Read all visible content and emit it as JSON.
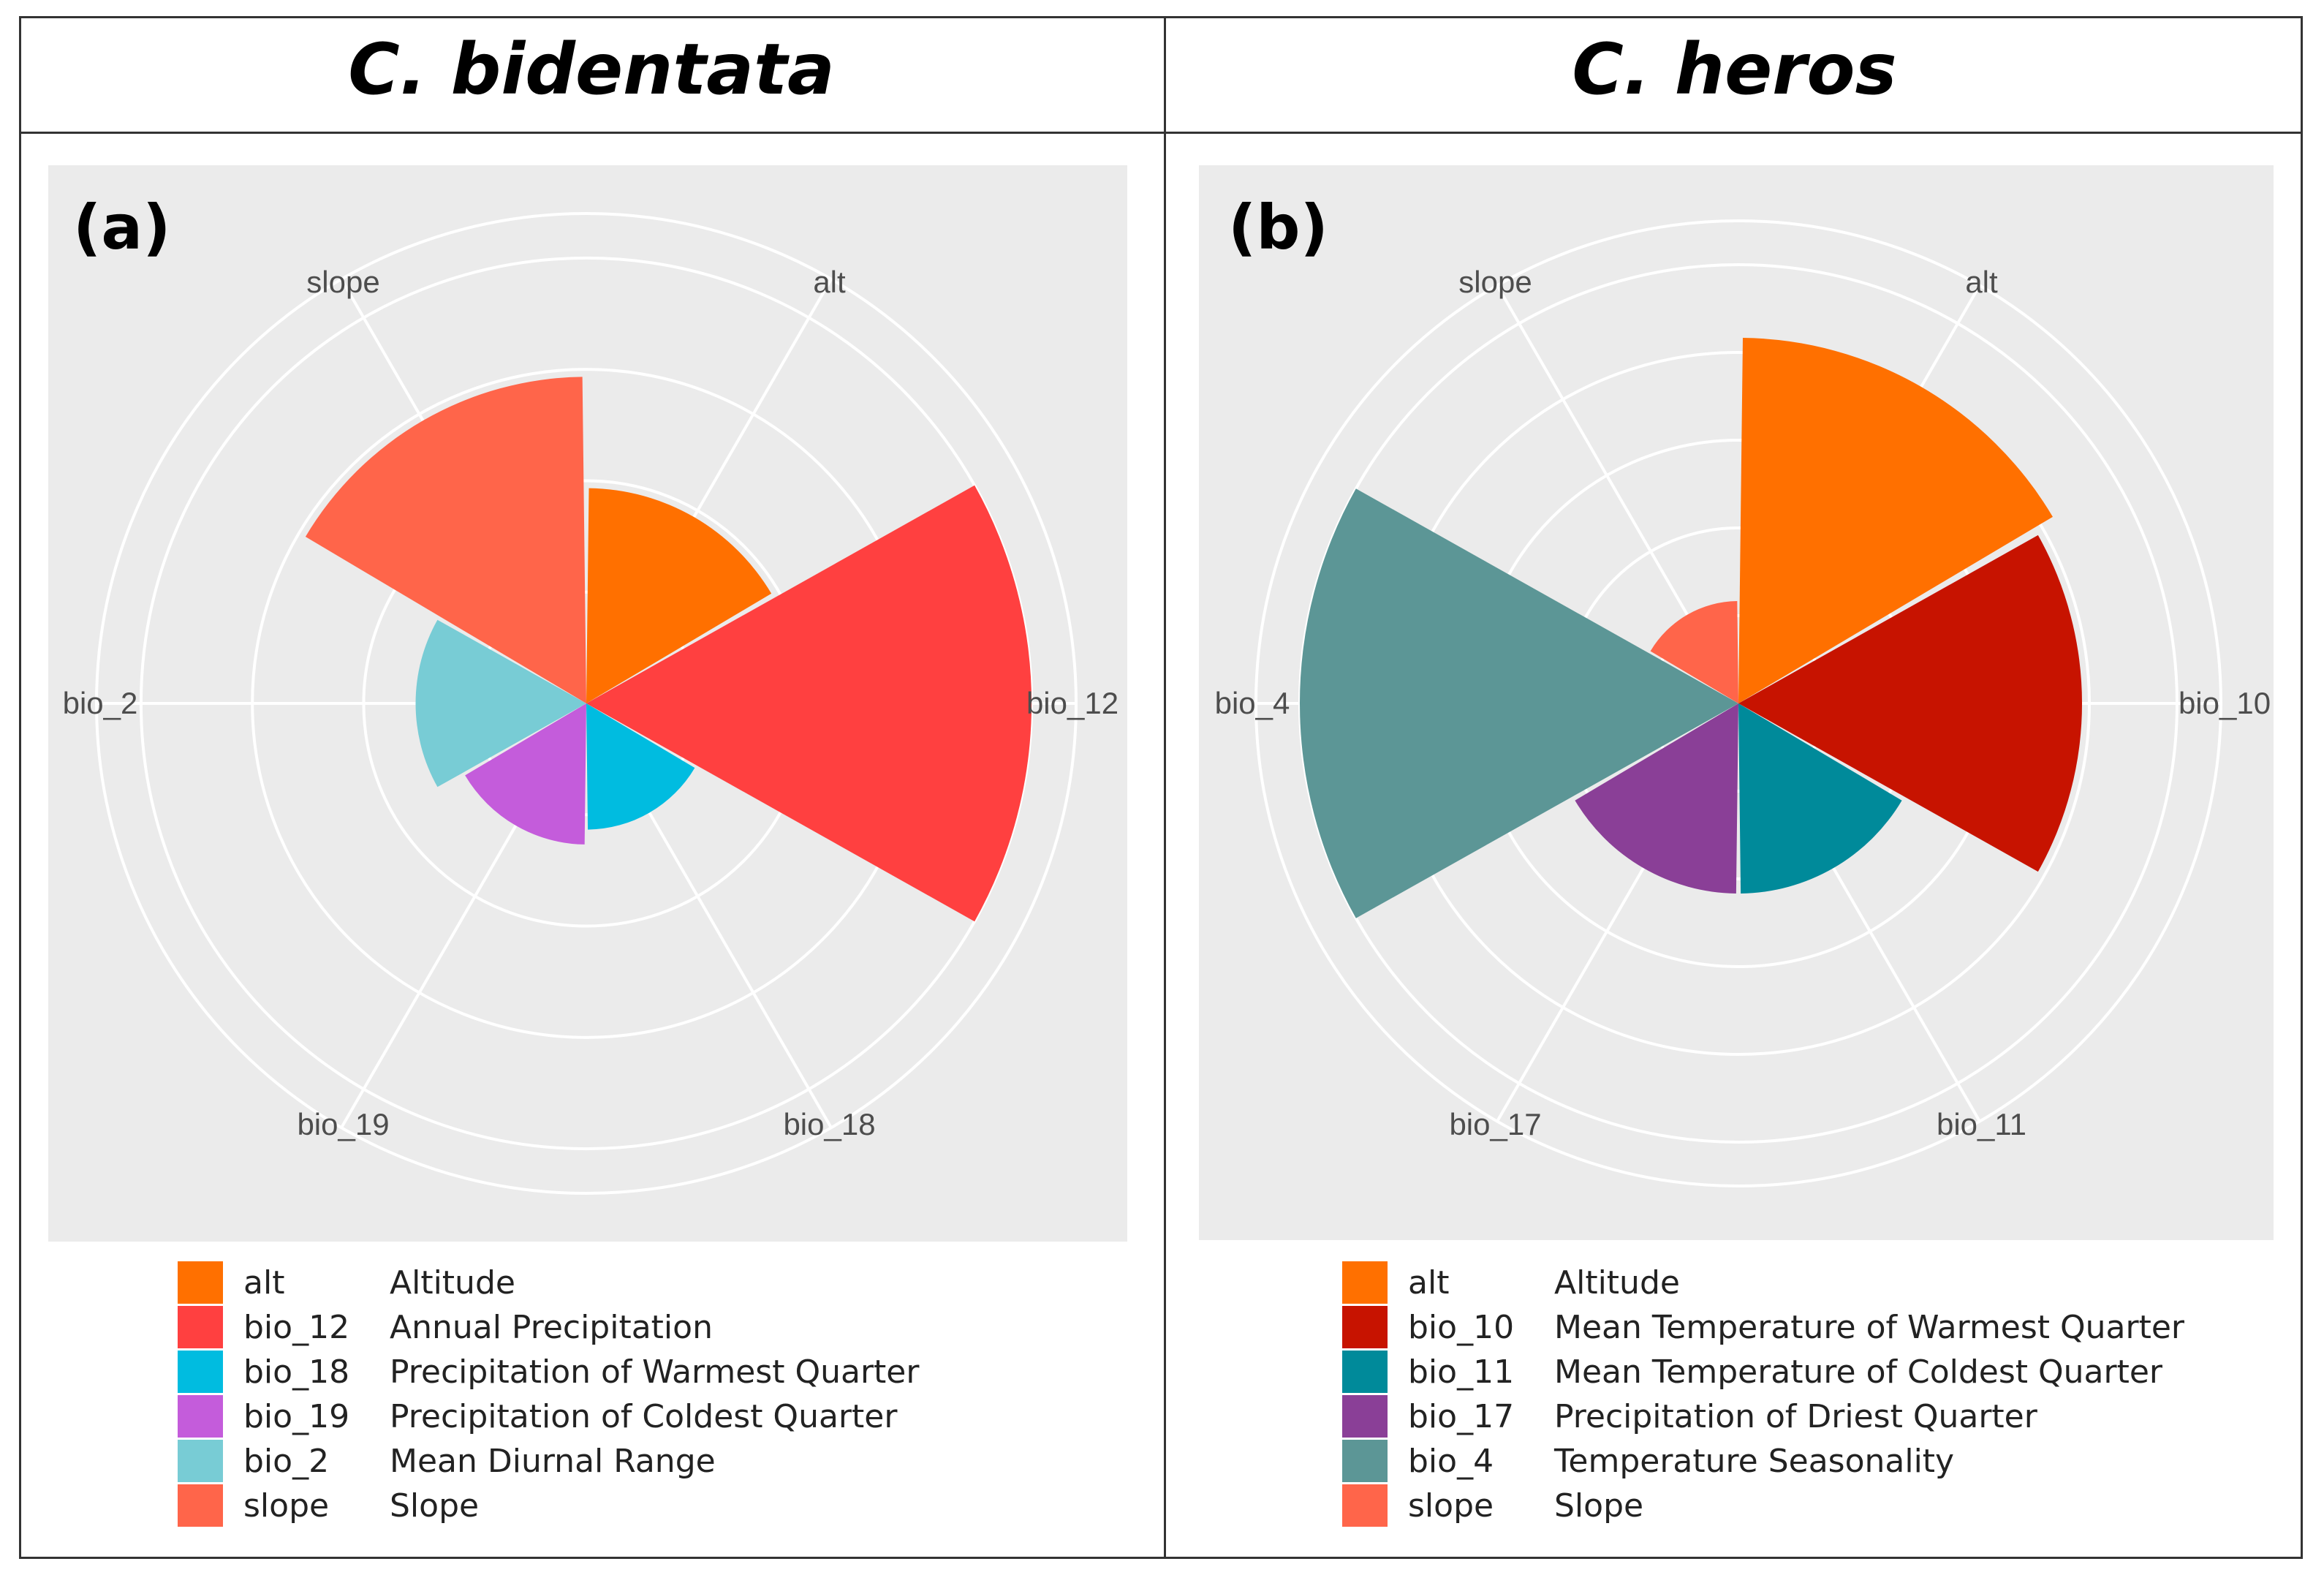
{
  "figure": {
    "panels": [
      {
        "title": "C. bidentata",
        "letter": "(a)",
        "legend": [
          {
            "code": "alt",
            "label": "Altitude",
            "color": "#FF7000"
          },
          {
            "code": "bio_12",
            "label": "Annual Precipitation",
            "color": "#FF4040"
          },
          {
            "code": "bio_18",
            "label": "Precipitation of Warmest Quarter",
            "color": "#00BCE0"
          },
          {
            "code": "bio_19",
            "label": "Precipitation of Coldest Quarter",
            "color": "#C45CDB"
          },
          {
            "code": "bio_2",
            "label": "Mean Diurnal Range",
            "color": "#78CCD5"
          },
          {
            "code": "slope",
            "label": "Slope",
            "color": "#FF654A"
          }
        ]
      },
      {
        "title": "C. heros",
        "letter": "(b)",
        "legend": [
          {
            "code": "alt",
            "label": "Altitude",
            "color": "#FF7000"
          },
          {
            "code": "bio_10",
            "label": "Mean Temperature of Warmest Quarter",
            "color": "#C71300"
          },
          {
            "code": "bio_11",
            "label": "Mean Temperature of Coldest Quarter",
            "color": "#008A9A"
          },
          {
            "code": "bio_17",
            "label": "Precipitation of Driest Quarter",
            "color": "#8A3F97"
          },
          {
            "code": "bio_4",
            "label": "Temperature Seasonality",
            "color": "#5C9696"
          },
          {
            "code": "slope",
            "label": "Slope",
            "color": "#FF654A"
          }
        ]
      }
    ]
  },
  "chart_data": [
    {
      "type": "polar-bar",
      "title": "C. bidentata",
      "categories": [
        "alt",
        "bio_12",
        "bio_18",
        "bio_19",
        "bio_2",
        "slope"
      ],
      "values": [
        1.45,
        3.0,
        0.85,
        0.95,
        1.15,
        2.2
      ],
      "colors": [
        "#FF7000",
        "#FF4040",
        "#00BCE0",
        "#C45CDB",
        "#78CCD5",
        "#FF654A"
      ],
      "rlim": [
        0,
        3.3
      ],
      "grid_rings": [
        0.75,
        1.5,
        2.25,
        3.0,
        3.3
      ],
      "legend": "bottom"
    },
    {
      "type": "polar-bar",
      "title": "C. heros",
      "categories": [
        "alt",
        "bio_10",
        "bio_11",
        "bio_17",
        "bio_4",
        "slope"
      ],
      "values": [
        2.5,
        2.35,
        1.3,
        1.3,
        3.0,
        0.7
      ],
      "colors": [
        "#FF7000",
        "#C71300",
        "#008A9A",
        "#8A3F97",
        "#5C9696",
        "#FF654A"
      ],
      "rlim": [
        0,
        3.3
      ],
      "grid_rings": [
        0.6,
        1.2,
        1.8,
        2.4,
        3.0,
        3.3
      ],
      "legend": "bottom"
    }
  ]
}
